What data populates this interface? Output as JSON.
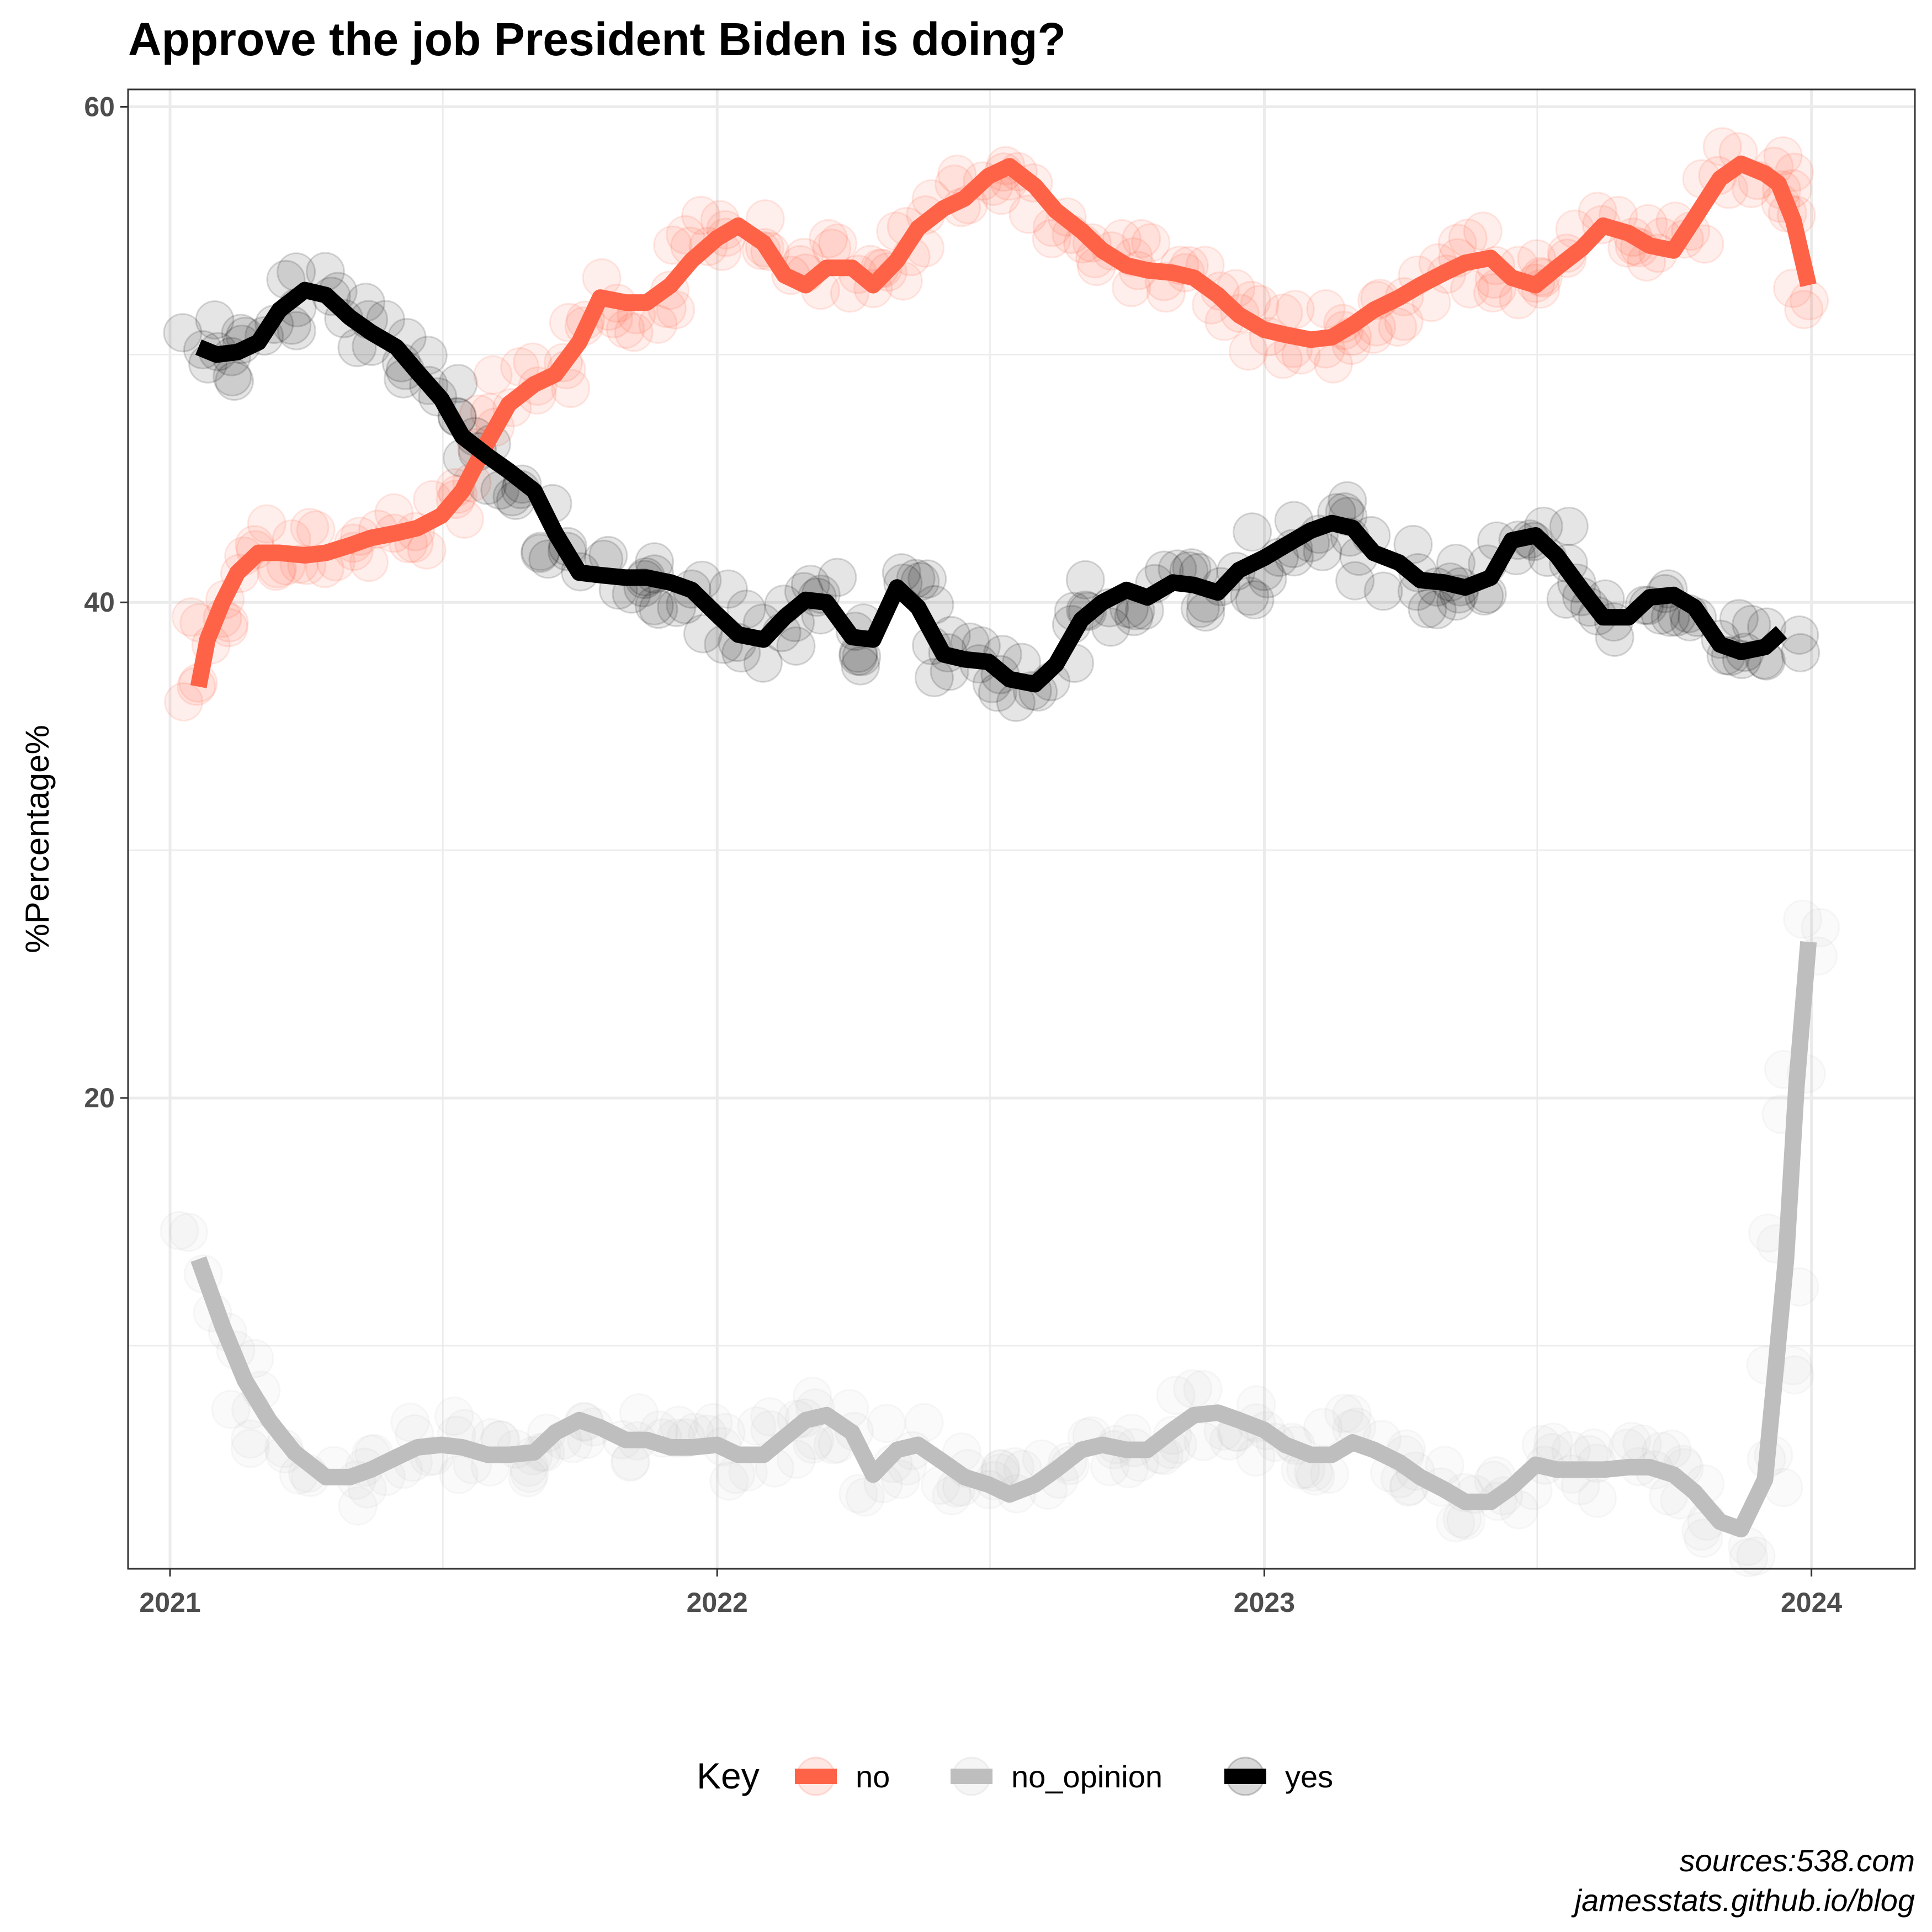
{
  "chart_data": {
    "type": "line",
    "title": "Approve the job President Biden is doing?",
    "xlabel": "",
    "ylabel": "%Percentage%",
    "xlim": [
      "2020-12-04",
      "2024-03-10"
    ],
    "ylim": [
      1,
      60.7
    ],
    "x_ticks": [
      "2021",
      "2022",
      "2023",
      "2024"
    ],
    "y_ticks": [
      "20",
      "40",
      "60"
    ],
    "grid": true,
    "legend": {
      "title": "Key",
      "position": "bottom"
    },
    "caption": [
      "sources:538.com",
      "jamesstats.github.io/blog"
    ],
    "colors": {
      "no": "#ff6347",
      "no_opinion": "#bebebe",
      "yes": "#000000"
    },
    "series": [
      {
        "name": "no",
        "x": [
          "2021-01-20",
          "2021-01-26",
          "2021-02-05",
          "2021-02-15",
          "2021-03-01",
          "2021-03-15",
          "2021-04-01",
          "2021-04-15",
          "2021-05-01",
          "2021-05-15",
          "2021-06-01",
          "2021-06-15",
          "2021-07-01",
          "2021-07-15",
          "2021-08-01",
          "2021-08-15",
          "2021-09-01",
          "2021-09-15",
          "2021-10-01",
          "2021-10-15",
          "2021-11-01",
          "2021-11-15",
          "2021-12-01",
          "2021-12-15",
          "2022-01-01",
          "2022-01-15",
          "2022-02-01",
          "2022-02-15",
          "2022-03-01",
          "2022-03-15",
          "2022-04-01",
          "2022-04-15",
          "2022-05-01",
          "2022-05-15",
          "2022-06-01",
          "2022-06-15",
          "2022-07-01",
          "2022-07-15",
          "2022-08-01",
          "2022-08-15",
          "2022-09-01",
          "2022-09-15",
          "2022-10-01",
          "2022-10-15",
          "2022-11-01",
          "2022-11-15",
          "2022-12-01",
          "2022-12-15",
          "2023-01-01",
          "2023-01-15",
          "2023-02-01",
          "2023-02-15",
          "2023-03-01",
          "2023-03-15",
          "2023-04-01",
          "2023-04-15",
          "2023-05-01",
          "2023-05-15",
          "2023-06-01",
          "2023-06-15",
          "2023-07-01",
          "2023-07-15",
          "2023-08-01",
          "2023-08-15",
          "2023-09-01",
          "2023-09-15",
          "2023-10-01",
          "2023-10-15",
          "2023-11-01",
          "2023-11-15",
          "2023-12-01",
          "2023-12-10",
          "2023-12-20",
          "2023-12-30"
        ],
        "values": [
          36.6,
          38.5,
          40.0,
          41.2,
          42.0,
          42.0,
          41.9,
          42.0,
          42.3,
          42.6,
          42.8,
          43.0,
          43.5,
          44.5,
          46.5,
          48.0,
          48.8,
          49.2,
          50.5,
          52.3,
          52.1,
          52.1,
          52.8,
          53.8,
          54.7,
          55.2,
          54.5,
          53.2,
          52.8,
          53.5,
          53.5,
          52.8,
          53.8,
          55.1,
          55.9,
          56.3,
          57.2,
          57.6,
          56.8,
          55.8,
          55.0,
          54.2,
          53.6,
          53.4,
          53.3,
          53.1,
          52.4,
          51.6,
          51.0,
          50.8,
          50.6,
          50.7,
          51.2,
          51.8,
          52.3,
          52.8,
          53.3,
          53.7,
          53.9,
          53.1,
          52.8,
          53.5,
          54.3,
          55.2,
          54.9,
          54.4,
          54.2,
          55.5,
          57.1,
          57.7,
          57.3,
          56.9,
          55.4,
          52.8
        ]
      },
      {
        "name": "no_opinion",
        "x": [
          "2021-01-20",
          "2021-02-05",
          "2021-02-20",
          "2021-03-08",
          "2021-03-25",
          "2021-04-15",
          "2021-05-01",
          "2021-05-15",
          "2021-06-01",
          "2021-06-15",
          "2021-07-01",
          "2021-07-15",
          "2021-08-01",
          "2021-08-15",
          "2021-09-01",
          "2021-09-15",
          "2021-10-01",
          "2021-10-15",
          "2021-11-01",
          "2021-11-15",
          "2021-12-01",
          "2021-12-15",
          "2022-01-01",
          "2022-01-15",
          "2022-02-01",
          "2022-02-15",
          "2022-03-01",
          "2022-03-15",
          "2022-04-01",
          "2022-04-15",
          "2022-05-01",
          "2022-05-15",
          "2022-06-01",
          "2022-06-15",
          "2022-07-01",
          "2022-07-15",
          "2022-08-01",
          "2022-08-15",
          "2022-09-01",
          "2022-09-15",
          "2022-10-01",
          "2022-10-15",
          "2022-11-01",
          "2022-11-15",
          "2022-12-01",
          "2022-12-15",
          "2023-01-01",
          "2023-01-15",
          "2023-02-01",
          "2023-02-15",
          "2023-03-01",
          "2023-03-15",
          "2023-04-01",
          "2023-04-15",
          "2023-05-01",
          "2023-05-15",
          "2023-06-01",
          "2023-06-15",
          "2023-07-01",
          "2023-07-15",
          "2023-08-01",
          "2023-08-15",
          "2023-09-01",
          "2023-09-15",
          "2023-10-01",
          "2023-10-15",
          "2023-11-01",
          "2023-11-15",
          "2023-12-01",
          "2023-12-08",
          "2023-12-15",
          "2023-12-22",
          "2023-12-30"
        ],
        "values": [
          13.5,
          10.8,
          8.6,
          7.0,
          5.7,
          4.7,
          4.7,
          5.0,
          5.5,
          5.9,
          6.0,
          5.9,
          5.6,
          5.6,
          5.7,
          6.5,
          7.0,
          6.7,
          6.2,
          6.2,
          5.9,
          5.9,
          6.0,
          5.6,
          5.6,
          6.3,
          7.0,
          7.2,
          6.5,
          4.8,
          5.8,
          6.0,
          5.3,
          4.7,
          4.4,
          4.0,
          4.4,
          5.0,
          5.8,
          6.0,
          5.8,
          5.8,
          6.6,
          7.2,
          7.3,
          7.0,
          6.6,
          6.0,
          5.6,
          5.6,
          6.1,
          5.8,
          5.3,
          4.7,
          4.2,
          3.7,
          3.7,
          4.3,
          5.2,
          5.0,
          5.0,
          5.0,
          5.1,
          5.1,
          4.8,
          4.1,
          2.9,
          2.6,
          4.6,
          9.0,
          13.5,
          20.5,
          26.3
        ]
      },
      {
        "name": "yes",
        "x": [
          "2021-01-20",
          "2021-02-01",
          "2021-02-15",
          "2021-03-01",
          "2021-03-15",
          "2021-04-01",
          "2021-04-15",
          "2021-05-01",
          "2021-05-15",
          "2021-06-01",
          "2021-06-15",
          "2021-07-01",
          "2021-07-15",
          "2021-08-01",
          "2021-08-15",
          "2021-09-01",
          "2021-09-15",
          "2021-10-01",
          "2021-10-15",
          "2021-11-01",
          "2021-11-15",
          "2021-12-01",
          "2021-12-15",
          "2022-01-01",
          "2022-01-15",
          "2022-02-01",
          "2022-02-15",
          "2022-03-01",
          "2022-03-15",
          "2022-04-01",
          "2022-04-15",
          "2022-05-01",
          "2022-05-15",
          "2022-06-01",
          "2022-06-15",
          "2022-07-01",
          "2022-07-15",
          "2022-08-01",
          "2022-08-15",
          "2022-09-01",
          "2022-09-15",
          "2022-10-01",
          "2022-10-15",
          "2022-11-01",
          "2022-11-15",
          "2022-12-01",
          "2022-12-15",
          "2023-01-01",
          "2023-01-15",
          "2023-02-01",
          "2023-02-15",
          "2023-03-01",
          "2023-03-15",
          "2023-04-01",
          "2023-04-15",
          "2023-05-01",
          "2023-05-15",
          "2023-06-01",
          "2023-06-15",
          "2023-07-01",
          "2023-07-15",
          "2023-08-01",
          "2023-08-15",
          "2023-09-01",
          "2023-09-15",
          "2023-10-01",
          "2023-10-15",
          "2023-11-01",
          "2023-11-15",
          "2023-12-01",
          "2023-12-12"
        ],
        "values": [
          50.3,
          50.0,
          50.1,
          50.5,
          51.8,
          52.6,
          52.4,
          51.5,
          50.9,
          50.3,
          49.3,
          48.2,
          46.7,
          45.9,
          45.3,
          44.5,
          42.8,
          41.2,
          41.1,
          41.0,
          41.0,
          40.8,
          40.5,
          39.5,
          38.7,
          38.5,
          39.4,
          40.1,
          40.0,
          38.6,
          38.5,
          40.6,
          39.8,
          37.9,
          37.7,
          37.6,
          36.9,
          36.7,
          37.5,
          39.3,
          40.0,
          40.5,
          40.2,
          40.8,
          40.7,
          40.4,
          41.3,
          41.8,
          42.3,
          42.9,
          43.2,
          43.0,
          42.0,
          41.6,
          40.9,
          40.8,
          40.6,
          41.0,
          42.5,
          42.7,
          41.9,
          40.5,
          39.4,
          39.4,
          40.2,
          40.3,
          39.8,
          38.3,
          38.0,
          38.2,
          38.8
        ]
      }
    ]
  }
}
